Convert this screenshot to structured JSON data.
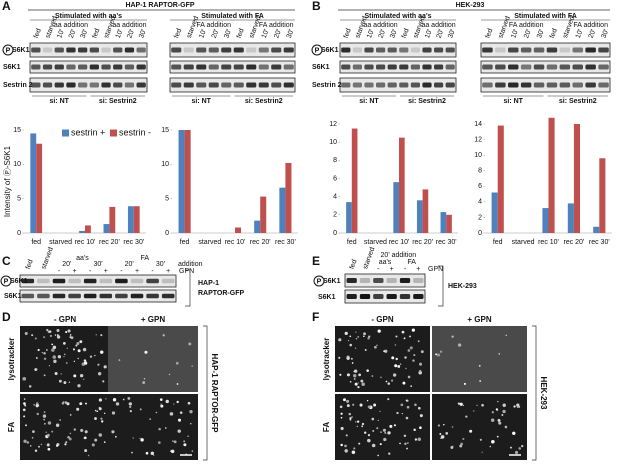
{
  "p_mark": "P",
  "top": {
    "A": {
      "letter": "A",
      "title": "HAP-1 RAPTOR-GFP",
      "rows": [
        "S6K1",
        "S6K1",
        "Sestrin 2"
      ]
    },
    "B": {
      "letter": "B",
      "title": "HEK-293",
      "rows": [
        "S6K1",
        "S6K1",
        "Sestrin 2"
      ]
    },
    "blots": [
      {
        "group": "Stimulated with aa's",
        "lanes": [
          "fed",
          "starved",
          "10'",
          "20'",
          "30'",
          "fed",
          "starved",
          "10'",
          "20'",
          "30'"
        ],
        "additions": [
          "aa addition",
          "aa addition"
        ],
        "si": [
          "si: NT",
          "si: Sestrin2"
        ]
      },
      {
        "group": "Stimulated with FA",
        "lanes": [
          "fed",
          "starved",
          "10'",
          "20'",
          "30'",
          "fed",
          "starved",
          "10'",
          "20'",
          "30'"
        ],
        "additions": [
          "FA addition",
          "FA addition"
        ],
        "si": [
          "si: NT",
          "si: Sestrin2"
        ]
      },
      {
        "group": "Stimulated with aa's",
        "lanes": [
          "fed",
          "starved",
          "10'",
          "20'",
          "30'",
          "fed",
          "starved",
          "10'",
          "20'",
          "30'"
        ],
        "additions": [
          "aa addition",
          "aa addition"
        ],
        "si": [
          "si: NT",
          "si: Sestrin2"
        ]
      },
      {
        "group": "Stimulated with FA",
        "lanes": [
          "fed",
          "starved",
          "10'",
          "20'",
          "30'",
          "fed",
          "starved",
          "10'",
          "20'",
          "30'"
        ],
        "additions": [
          "FA addition",
          "FA addition"
        ],
        "si": [
          "si: NT",
          "si: Sestrin2"
        ]
      }
    ]
  },
  "chart_data": [
    {
      "type": "bar",
      "ylabel": "Intensity of Ⓟ-S6K1",
      "legend": "top-left",
      "categories": [
        "fed",
        "starved",
        "rec 10'",
        "rec 20'",
        "rec 30'"
      ],
      "series": [
        {
          "name": "sestrin +",
          "color": "#4f81bd",
          "values": [
            14.5,
            0,
            0.3,
            1.3,
            3.9
          ]
        },
        {
          "name": "sestrin -",
          "color": "#c0504d",
          "values": [
            13,
            0,
            1.1,
            3.8,
            3.9
          ]
        }
      ],
      "ylim": [
        0,
        15
      ],
      "yticks": [
        0,
        5,
        10,
        15
      ]
    },
    {
      "type": "bar",
      "categories": [
        "fed",
        "starved",
        "rec 10'",
        "rec 20'",
        "rec 30'"
      ],
      "series": [
        {
          "color": "#4f81bd",
          "values": [
            15,
            0,
            0,
            1.8,
            6.6
          ]
        },
        {
          "color": "#c0504d",
          "values": [
            15,
            0,
            0.8,
            5.3,
            10.2
          ]
        }
      ],
      "ylim": [
        0,
        15
      ],
      "yticks": [
        0,
        5,
        10,
        15
      ]
    },
    {
      "type": "bar",
      "categories": [
        "fed",
        "starved",
        "rec 10'",
        "rec 20'",
        "rec 30'"
      ],
      "series": [
        {
          "color": "#4f81bd",
          "values": [
            3.4,
            0,
            5.6,
            3.6,
            2.3
          ]
        },
        {
          "color": "#c0504d",
          "values": [
            11.5,
            0,
            10.5,
            4.8,
            2.0
          ]
        }
      ],
      "ylim": [
        0,
        12
      ],
      "yticks": [
        0,
        2,
        4,
        6,
        8,
        10,
        12
      ]
    },
    {
      "type": "bar",
      "categories": [
        "fed",
        "starved",
        "rec 10'",
        "rec 20'",
        "rec 30'"
      ],
      "series": [
        {
          "color": "#4f81bd",
          "values": [
            5.2,
            0,
            3.2,
            3.8,
            0.8
          ]
        },
        {
          "color": "#c0504d",
          "values": [
            13.8,
            0,
            14.8,
            14.0,
            9.6
          ]
        }
      ],
      "ylim": [
        0,
        14
      ],
      "yticks": [
        0,
        2,
        4,
        6,
        8,
        10,
        12,
        14
      ]
    }
  ],
  "C": {
    "letter": "C",
    "lanes": [
      "fed",
      "starved"
    ],
    "groups": [
      "aa's",
      "FA"
    ],
    "times": [
      "20'",
      "30'",
      "20'",
      "30'"
    ],
    "addition": "addition",
    "gpn": "GPN",
    "signs": [
      "-",
      "+",
      "-",
      "+",
      "-",
      "+",
      "-",
      "+"
    ],
    "rows": [
      "S6K1",
      "S6K1"
    ],
    "side": [
      "HAP-1",
      "RAPTOR-GFP"
    ]
  },
  "E": {
    "letter": "E",
    "lanes": [
      "fed",
      "starved"
    ],
    "header": "20' addition",
    "groups": [
      "aa's",
      "FA"
    ],
    "gpn": "GPN",
    "signs": [
      "-",
      "+",
      "-",
      "+"
    ],
    "rows": [
      "S6K1",
      "S6K1"
    ],
    "side": "HEK-293"
  },
  "D": {
    "letter": "D",
    "cols": [
      "- GPN",
      "+ GPN"
    ],
    "rows": [
      "lysotracker",
      "FA"
    ],
    "side": "HAP-1 RAPTOR-GFP"
  },
  "F": {
    "letter": "F",
    "cols": [
      "- GPN",
      "+ GPN"
    ],
    "rows": [
      "lysotracker",
      "FA"
    ],
    "side": "HEK-293"
  }
}
